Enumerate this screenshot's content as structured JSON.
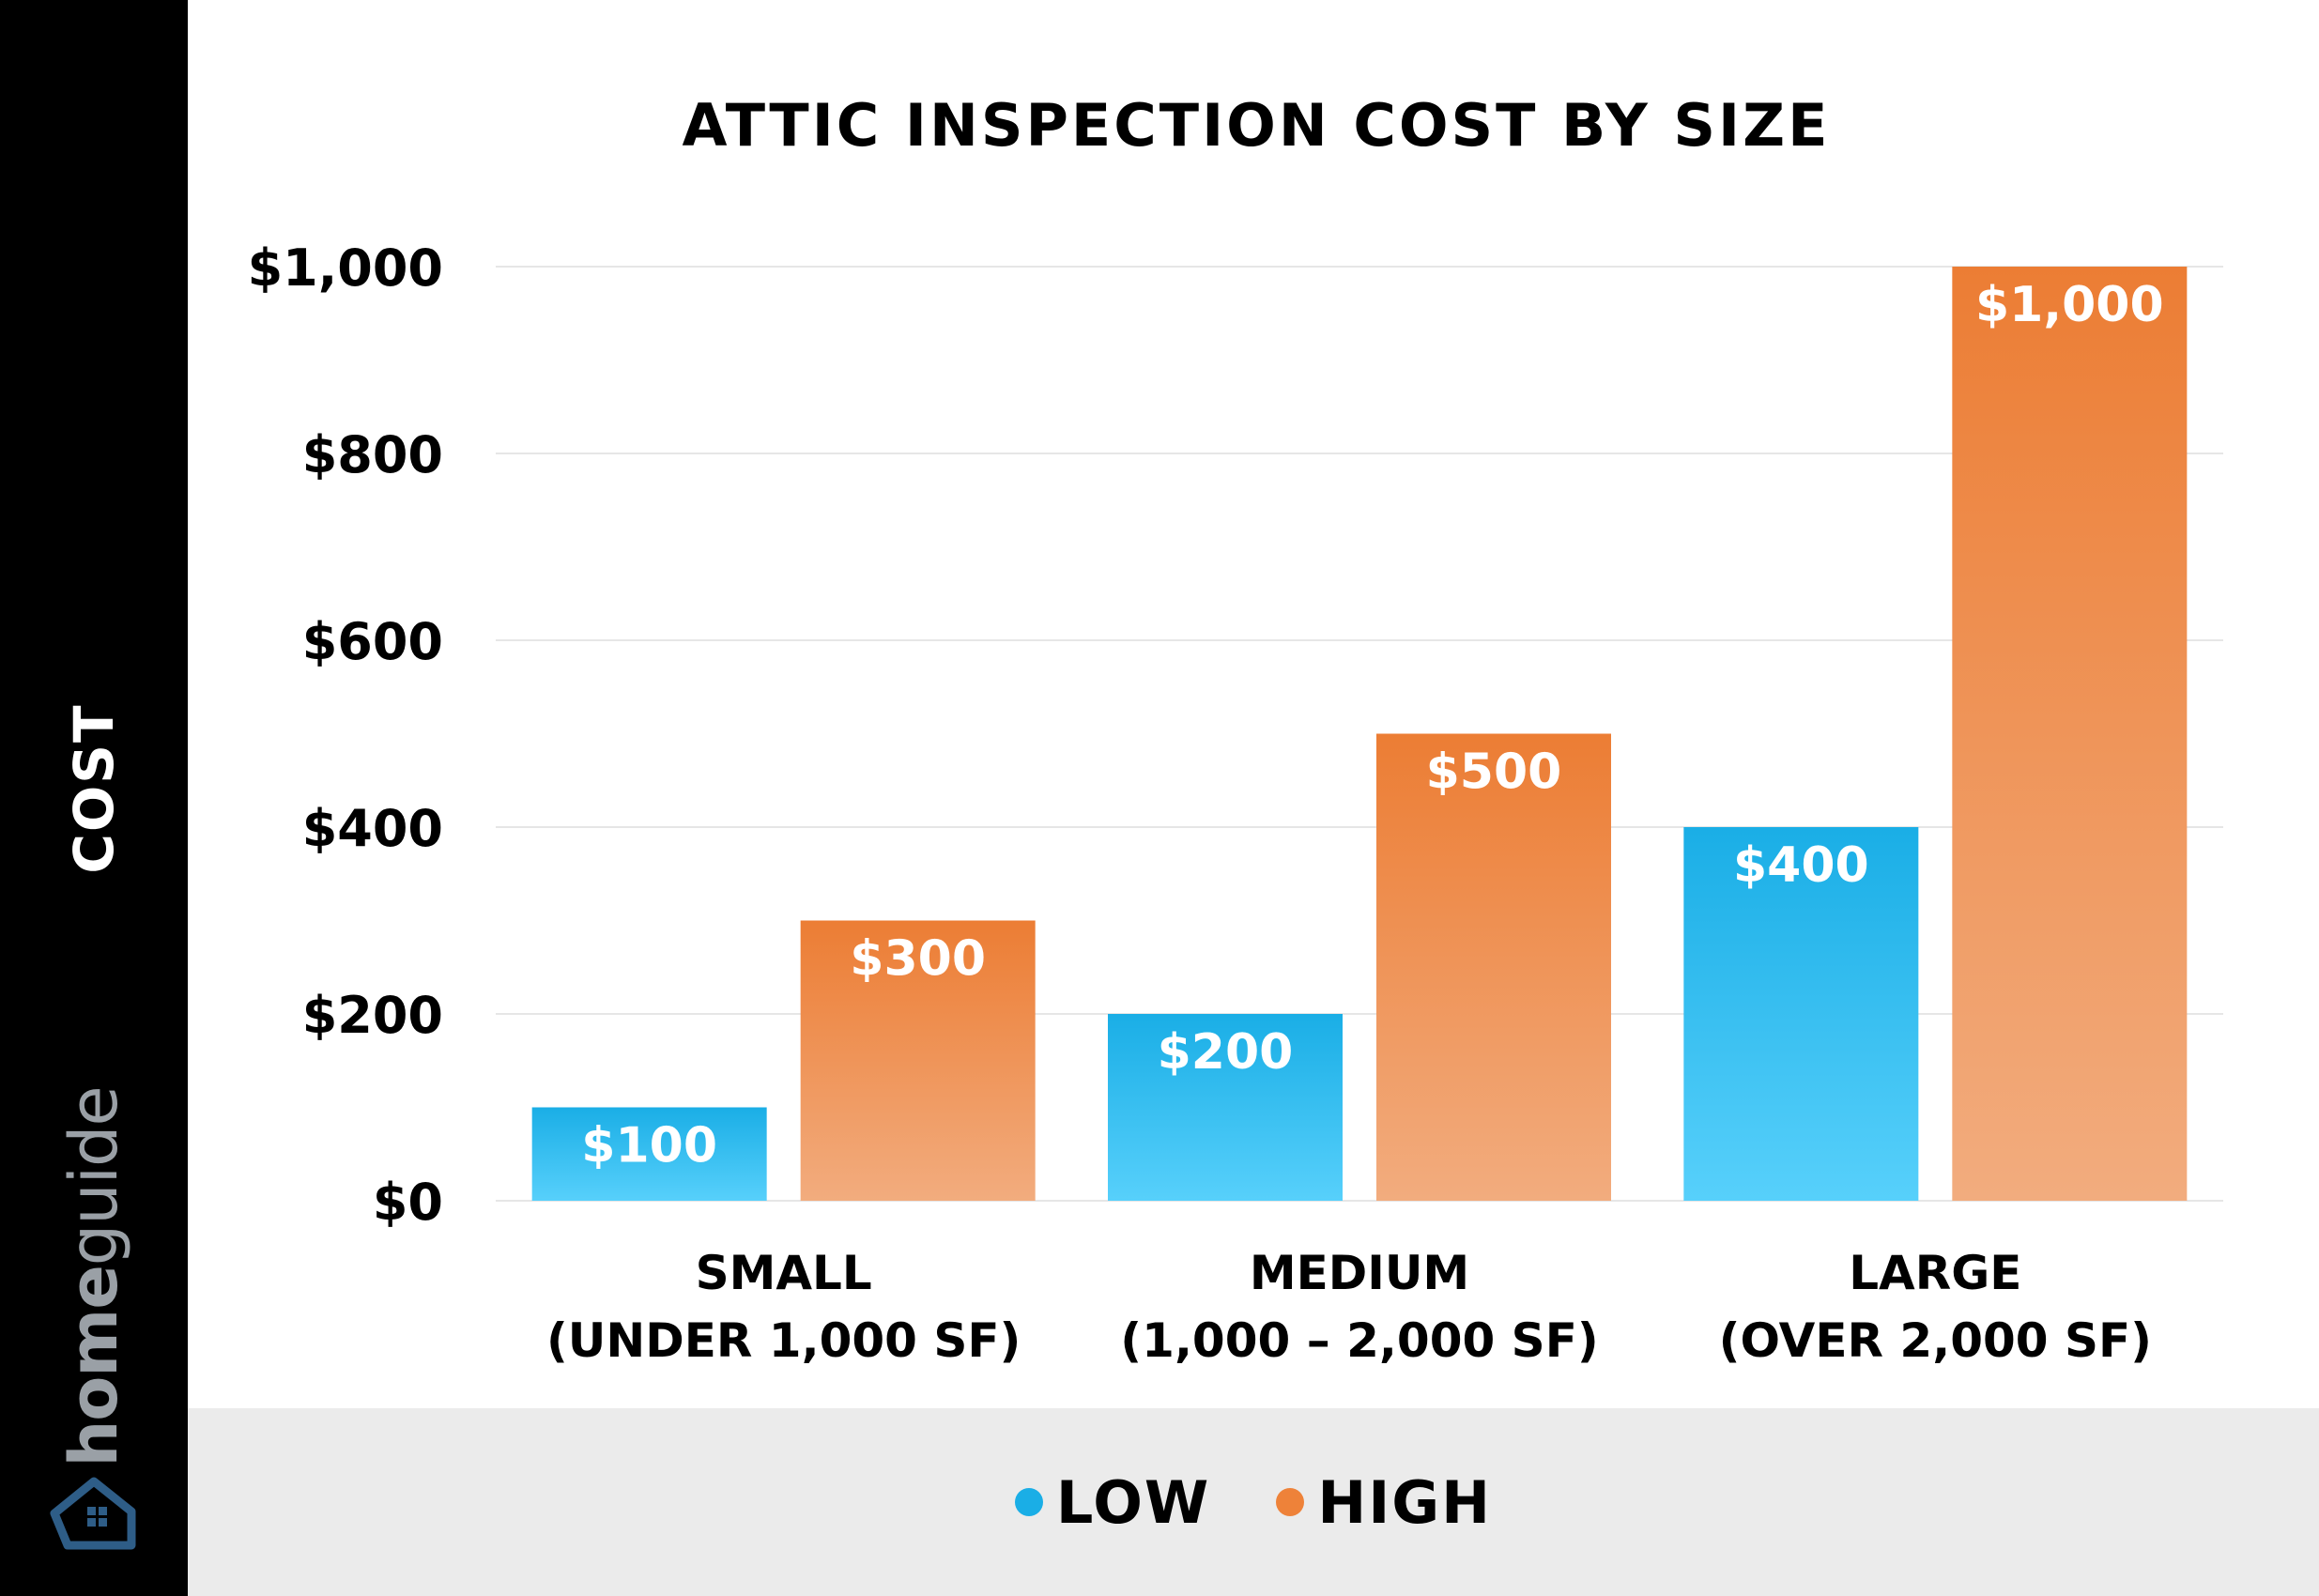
{
  "y_axis_label": "COST",
  "brand": {
    "part1": "home",
    "part2": "guide",
    "logo_icon": "house-icon"
  },
  "colors": {
    "low": "#1aaee6",
    "high": "#ee8239",
    "grid": "#e6e6e6"
  },
  "chart_data": {
    "type": "bar",
    "title": "ATTIC INSPECTION COST BY SIZE",
    "categories": [
      [
        "SMALL",
        "(UNDER 1,000 SF)"
      ],
      [
        "MEDIUM",
        "(1,000 – 2,000 SF)"
      ],
      [
        "LARGE",
        "(OVER 2,000 SF)"
      ]
    ],
    "series": [
      {
        "name": "LOW",
        "values": [
          100,
          200,
          400
        ],
        "labels": [
          "$100",
          "$200",
          "$400"
        ]
      },
      {
        "name": "HIGH",
        "values": [
          300,
          500,
          1000
        ],
        "labels": [
          "$300",
          "$500",
          "$1,000"
        ]
      }
    ],
    "ylim": [
      0,
      1000
    ],
    "yticks": [
      0,
      200,
      400,
      600,
      800,
      1000
    ],
    "ytick_labels": [
      "$0",
      "$200",
      "$400",
      "$600",
      "$800",
      "$1,000"
    ],
    "grid": true,
    "legend_position": "bottom"
  }
}
